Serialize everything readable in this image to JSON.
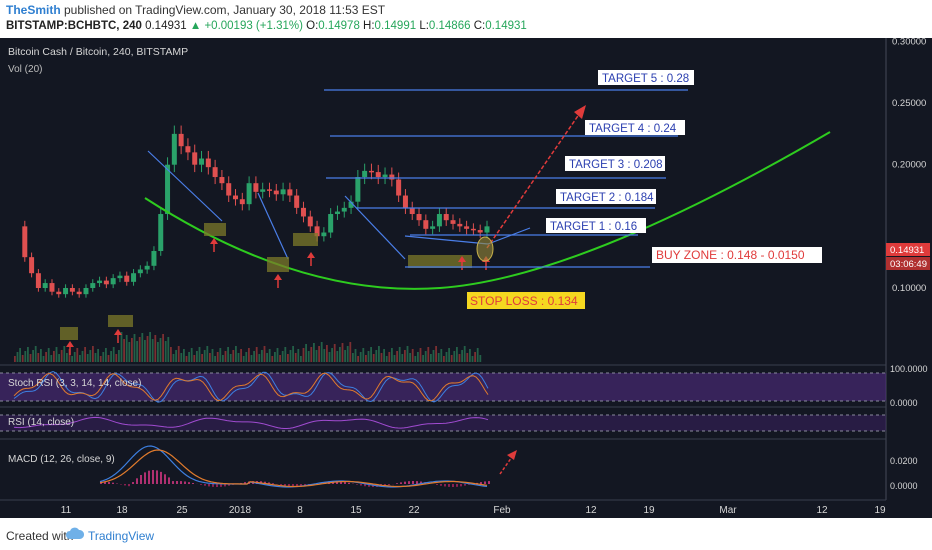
{
  "header": {
    "author": "TheSmith",
    "published": " published on TradingView.com, January 30, 2018 11:53 EST",
    "symbol": "BITSTAMP:BCHBTC, 240",
    "last": "0.14931",
    "change": "▲ +0.00193 (+1.31%)",
    "o_label": "O:",
    "o": "0.14978",
    "h_label": "H:",
    "h": "0.14991",
    "l_label": "L:",
    "l": "0.14866",
    "c_label": "C:",
    "c": "0.14931"
  },
  "chart_data": {
    "type": "line",
    "title": "Bitcoin Cash / Bitcoin, 240, BITSTAMP",
    "subtitle": "Vol (20)",
    "price_axis": {
      "ticks": [
        "0.30000",
        "0.25000",
        "0.20000",
        "0.10000"
      ],
      "values": [
        0.3,
        0.25,
        0.2,
        0.1
      ],
      "ylim": [
        0.085,
        0.31
      ]
    },
    "last_price": "0.14931",
    "countdown": "03:06:49",
    "x_ticks": [
      "11",
      "18",
      "25",
      "2018",
      "8",
      "15",
      "22",
      "Feb",
      "12",
      "19",
      "Mar",
      "12",
      "19"
    ],
    "targets": [
      {
        "label": "TARGET 1 : 0.16",
        "value": 0.16
      },
      {
        "label": "TARGET 2 : 0.184",
        "value": 0.184
      },
      {
        "label": "TARGET 3 : 0.208",
        "value": 0.208
      },
      {
        "label": "TARGET 4 : 0.24",
        "value": 0.24
      },
      {
        "label": "TARGET 5 : 0.28",
        "value": 0.28
      }
    ],
    "buy_zone": {
      "label": "BUY ZONE : 0.148 - 0.0150"
    },
    "stop_loss": {
      "label": "STOP LOSS : 0.134",
      "value": 0.134
    },
    "price_series": [
      0.15,
      0.125,
      0.112,
      0.1,
      0.104,
      0.097,
      0.095,
      0.1,
      0.097,
      0.095,
      0.1,
      0.104,
      0.106,
      0.103,
      0.108,
      0.11,
      0.105,
      0.112,
      0.115,
      0.118,
      0.13,
      0.16,
      0.2,
      0.225,
      0.215,
      0.21,
      0.2,
      0.205,
      0.198,
      0.19,
      0.185,
      0.175,
      0.172,
      0.168,
      0.185,
      0.178,
      0.18,
      0.179,
      0.176,
      0.18,
      0.175,
      0.165,
      0.158,
      0.15,
      0.142,
      0.145,
      0.16,
      0.162,
      0.165,
      0.17,
      0.19,
      0.195,
      0.194,
      0.19,
      0.192,
      0.188,
      0.175,
      0.165,
      0.16,
      0.155,
      0.148,
      0.15,
      0.16,
      0.155,
      0.152,
      0.15,
      0.148,
      0.147,
      0.145,
      0.15
    ],
    "stoch_rsi": {
      "title": "Stoch RSI (3, 3, 14, 14, close)",
      "ticks": [
        "100.0000",
        "0.0000"
      ]
    },
    "rsi": {
      "title": "RSI (14, close)"
    },
    "macd": {
      "title": "MACD (12, 26, close, 9)",
      "ticks": [
        "0.0200",
        "0.0000"
      ]
    }
  },
  "footer": {
    "created": "Created with",
    "brand": "TradingView"
  }
}
